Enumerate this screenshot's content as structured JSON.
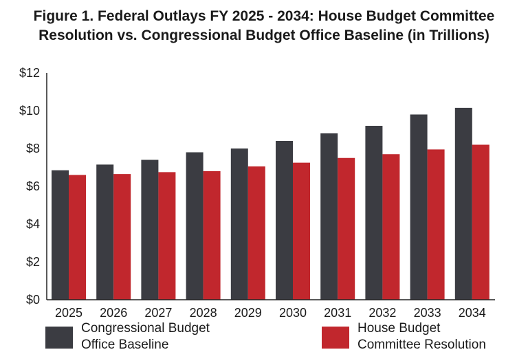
{
  "chart_data": {
    "type": "bar",
    "title": "Figure 1. Federal Outlays FY 2025 - 2034: House Budget Committee Resolution vs. Congressional Budget Office Baseline (in Trillions)",
    "categories": [
      "2025",
      "2026",
      "2027",
      "2028",
      "2029",
      "2030",
      "2031",
      "2032",
      "2033",
      "2034"
    ],
    "series": [
      {
        "name": "Congressional Budget Office Baseline",
        "color": "#3b3c42",
        "values": [
          6.85,
          7.15,
          7.4,
          7.8,
          8.0,
          8.4,
          8.8,
          9.2,
          9.8,
          10.15
        ]
      },
      {
        "name": "House Budget Committee Resolution",
        "color": "#c1272d",
        "values": [
          6.6,
          6.65,
          6.75,
          6.8,
          7.05,
          7.25,
          7.5,
          7.7,
          7.95,
          8.2
        ]
      }
    ],
    "yticks": [
      "$0",
      "$2",
      "$4",
      "$6",
      "$8",
      "$10",
      "$12"
    ],
    "ylim": [
      0,
      12
    ],
    "legend_position": "bottom"
  },
  "legend": {
    "cbo_line1": "Congressional Budget",
    "cbo_line2": "Office Baseline",
    "hbc_line1": "House Budget",
    "hbc_line2": "Committee Resolution"
  }
}
